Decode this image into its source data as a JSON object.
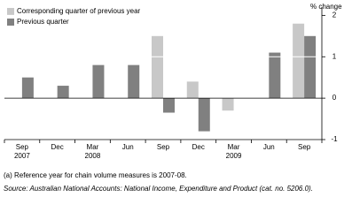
{
  "chart_data": {
    "type": "bar",
    "y_axis_label": "% change",
    "categories": [
      "Sep\n2007",
      "Dec",
      "Mar\n2008",
      "Jun",
      "Sep",
      "Dec",
      "Mar\n2009",
      "Jun",
      "Sep"
    ],
    "series": [
      {
        "name": "Corresponding quarter of previous year",
        "color": "#c8c8c8",
        "values": [
          null,
          null,
          null,
          null,
          1.5,
          0.4,
          -0.3,
          null,
          1.8
        ]
      },
      {
        "name": "Previous quarter",
        "color": "#808080",
        "values": [
          0.5,
          0.3,
          0.8,
          0.8,
          -0.35,
          -0.8,
          null,
          1.1,
          1.5
        ]
      }
    ],
    "ylim": [
      -1,
      2.2
    ],
    "yticks": [
      -1,
      0,
      1,
      2
    ],
    "grid": true,
    "notes": [
      "(a) Reference year for chain volume measures is 2007-08.",
      "Source: Australian National Accounts: National Income, Expenditure and Product (cat. no. 5206.0)."
    ]
  }
}
